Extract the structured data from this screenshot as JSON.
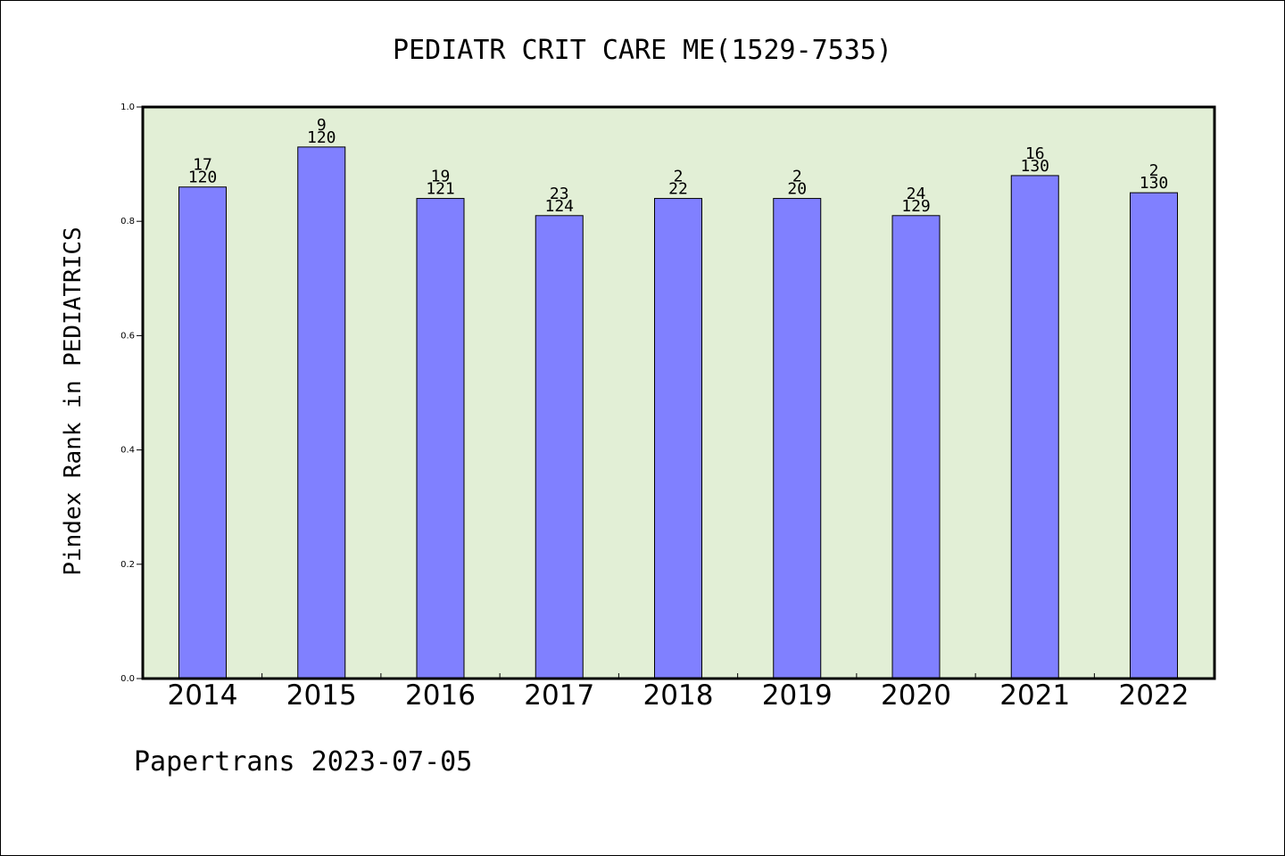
{
  "chart_data": {
    "type": "bar",
    "title": "PEDIATR CRIT CARE ME(1529-7535)",
    "ylabel": "Pindex Rank in PEDIATRICS",
    "xlabel": "",
    "footer": "Papertrans 2023-07-05",
    "ylim": [
      0,
      1.0
    ],
    "yticks": [
      "0.0",
      "0.2",
      "0.4",
      "0.6",
      "0.8",
      "1.0"
    ],
    "grid": false,
    "categories": [
      "2014",
      "2015",
      "2016",
      "2017",
      "2018",
      "2019",
      "2020",
      "2021",
      "2022"
    ],
    "values": [
      0.86,
      0.93,
      0.84,
      0.81,
      0.84,
      0.84,
      0.81,
      0.88,
      0.85
    ],
    "rank_labels": [
      "17",
      "9",
      "19",
      "23",
      "2",
      "2",
      "24",
      "16",
      "2"
    ],
    "total_labels": [
      "120",
      "120",
      "121",
      "124",
      "22",
      "20",
      "129",
      "130",
      "130"
    ],
    "colors": {
      "plot_background": "#e2efd6",
      "bar_fill": "#8080ff",
      "bar_stroke": "#000000"
    }
  }
}
